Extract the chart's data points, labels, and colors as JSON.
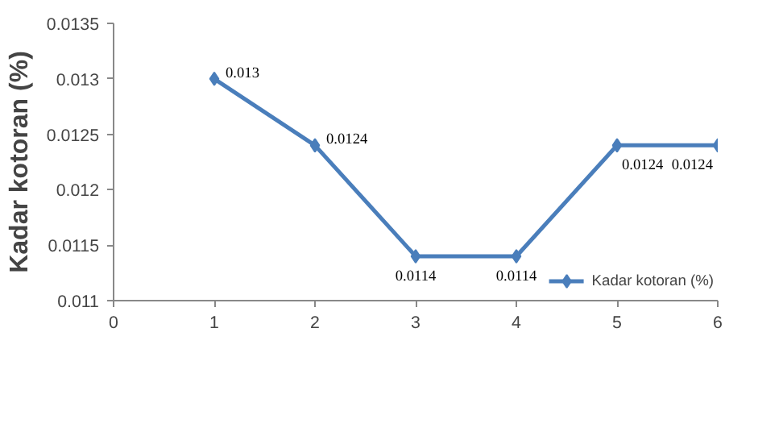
{
  "chart_data": {
    "type": "line",
    "ylabel": "Kadar kotoran (%)",
    "x": [
      1,
      2,
      3,
      4,
      5,
      6
    ],
    "series": [
      {
        "name": "Kadar kotoran (%)",
        "color": "#4a7ebb",
        "values": [
          0.013,
          0.0124,
          0.0114,
          0.0114,
          0.0124,
          0.0124
        ]
      }
    ],
    "xlim": [
      0,
      6
    ],
    "xticks": [
      0,
      1,
      2,
      3,
      4,
      5,
      6
    ],
    "ylim": [
      0.011,
      0.0135
    ],
    "yticks": [
      0.011,
      0.0115,
      0.012,
      0.0125,
      0.013,
      0.0135
    ],
    "data_labels": true,
    "marker": "diamond",
    "line_style": "solid",
    "grid": false,
    "legend": "bottom right"
  }
}
